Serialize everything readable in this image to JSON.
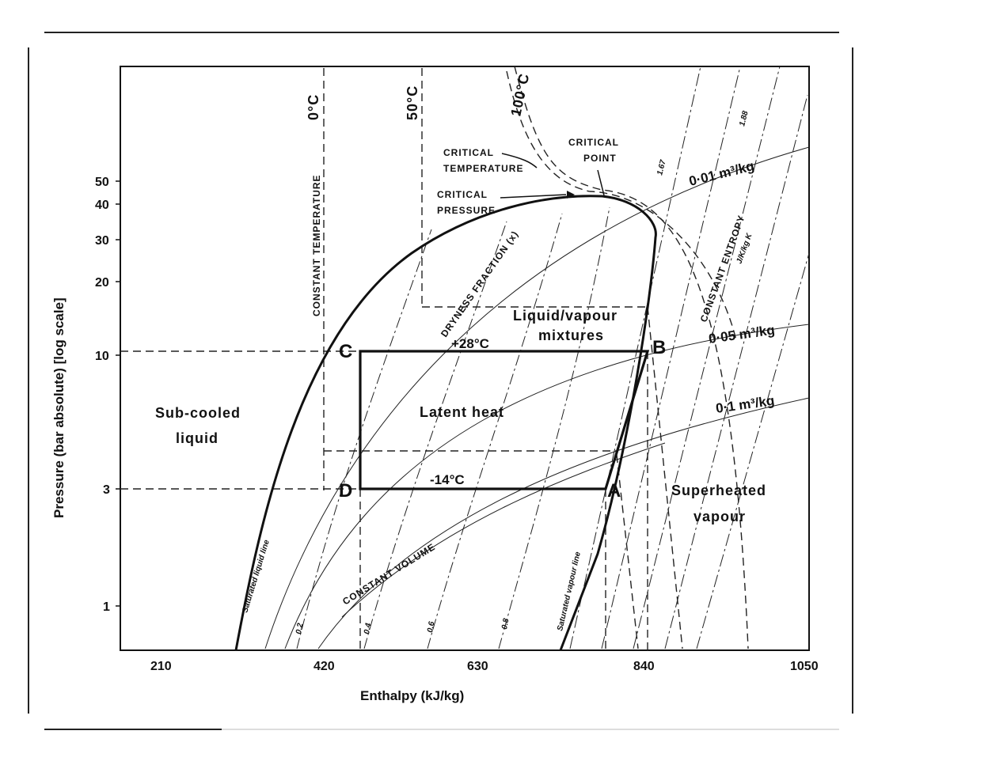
{
  "chart_data": {
    "type": "line",
    "title": "",
    "xlabel": "Enthalpy (kJ/kg)",
    "ylabel": "Pressure (bar absolute) [log scale]",
    "xlim": [
      60,
      1050
    ],
    "x_ticks": [
      "210",
      "420",
      "630",
      "840",
      "1050"
    ],
    "y_ticks": [
      "1",
      "3",
      "10",
      "20",
      "30",
      "40",
      "50"
    ],
    "y_scale": "log",
    "grid": false,
    "cycle": {
      "points": [
        {
          "name": "C",
          "h": 455,
          "p": 10.5
        },
        {
          "name": "B",
          "h": 840,
          "p": 10.5
        },
        {
          "name": "A",
          "h": 795,
          "p": 3
        },
        {
          "name": "D",
          "h": 455,
          "p": 3
        }
      ],
      "condensing_temp": "+28°C",
      "evaporating_temp": "-14°C"
    },
    "isotherms": [
      "0°C",
      "50°C",
      "100°C"
    ],
    "labels": {
      "constant_temperature": "CONSTANT TEMPERATURE",
      "critical_temperature_1": "CRITICAL",
      "critical_temperature_2": "TEMPERATURE",
      "critical_point_1": "CRITICAL",
      "critical_point_2": "POINT",
      "critical_pressure_1": "CRITICAL",
      "critical_pressure_2": "PRESSURE",
      "dryness_fraction": "DRYNESS FRACTION (x)",
      "liquid_vapour_1": "Liquid/vapour",
      "liquid_vapour_2": "mixtures",
      "latent_heat": "Latent heat",
      "subcooled_1": "Sub-cooled",
      "subcooled_2": "liquid",
      "superheated_1": "Superheated",
      "superheated_2": "vapour",
      "constant_entropy_1": "CONSTANT ENTROPY",
      "constant_entropy_2": "J/K/kg K",
      "constant_volume": "CONSTANT VOLUME",
      "saturated_liquid": "Saturated liquid line",
      "saturated_vapour": "Saturated vapour line",
      "volume_001": "0·01 m³/kg",
      "volume_005": "0·05 m³/kg",
      "volume_01": "0·1 m³/kg",
      "entropy_167": "1.67",
      "entropy_188": "1.88",
      "x_02": "0.2",
      "x_04": "0.4",
      "x_06": "0.6",
      "x_08": "0.8"
    }
  }
}
